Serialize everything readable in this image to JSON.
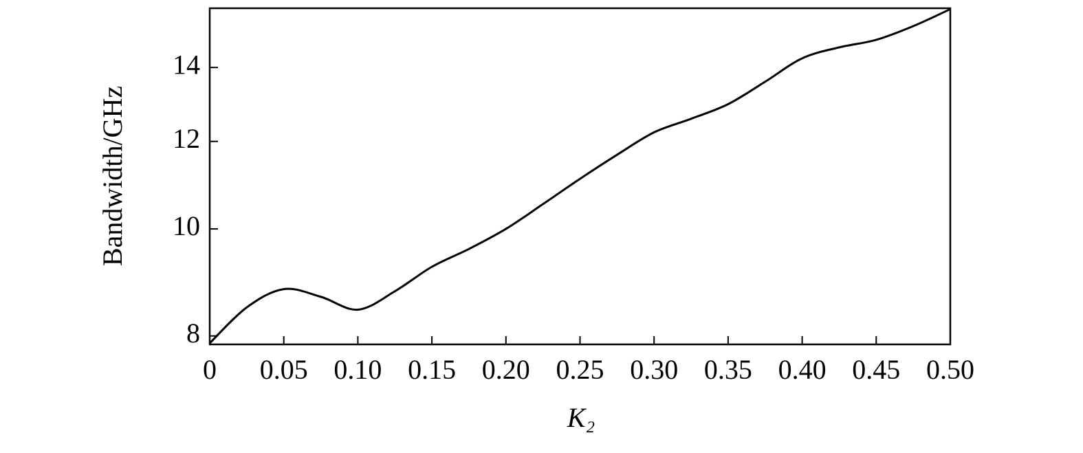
{
  "chart_data": {
    "type": "line",
    "xlabel": "K₂",
    "ylabel": "Bandwidth/GHz",
    "x": [
      0,
      0.025,
      0.05,
      0.075,
      0.1,
      0.125,
      0.15,
      0.175,
      0.2,
      0.225,
      0.25,
      0.275,
      0.3,
      0.325,
      0.35,
      0.375,
      0.4,
      0.425,
      0.45,
      0.475,
      0.5
    ],
    "series": [
      {
        "color": "#000000",
        "values": [
          7.88,
          8.49,
          8.82,
          8.68,
          8.45,
          8.78,
          9.24,
          9.59,
          10,
          10.53,
          11.1,
          11.67,
          12.23,
          12.58,
          12.97,
          13.59,
          14.27,
          14.6,
          14.83,
          15.26,
          15.81
        ]
      }
    ],
    "xlim": [
      0,
      0.5
    ],
    "xticks": [
      0,
      0.05,
      {
        "value": 0.1,
        "label": "0.10"
      },
      0.15,
      {
        "value": 0.2,
        "label": "0.20"
      },
      0.25,
      {
        "value": 0.3,
        "label": "0.30"
      },
      0.35,
      {
        "value": 0.4,
        "label": "0.40"
      },
      0.45,
      {
        "value": 0.5,
        "label": "0.50"
      }
    ],
    "ylim": [
      7.86,
      15.84
    ],
    "yticks": [
      8,
      10,
      12,
      14
    ],
    "ylog": true,
    "grid": false
  }
}
